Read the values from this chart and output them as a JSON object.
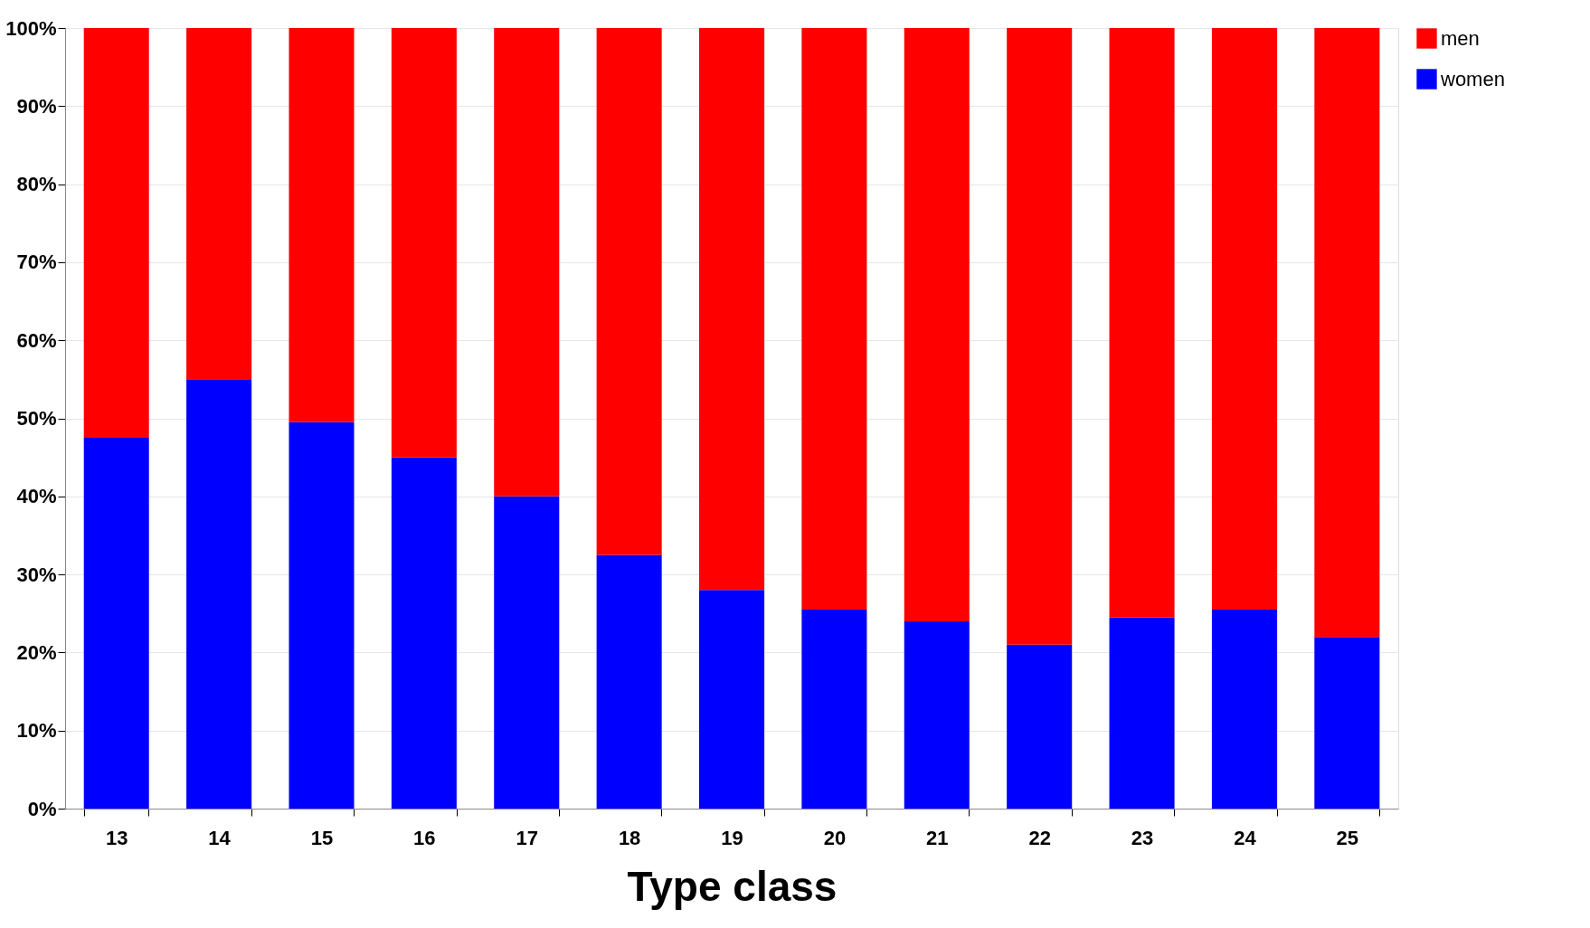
{
  "chart_data": {
    "type": "bar",
    "stacked": true,
    "xlabel": "Type class",
    "categories": [
      "13",
      "14",
      "15",
      "16",
      "17",
      "18",
      "19",
      "20",
      "21",
      "22",
      "23",
      "24",
      "25"
    ],
    "series": [
      {
        "name": "women",
        "color": "#0000ff",
        "values": [
          47.5,
          55,
          49.5,
          45,
          40,
          32.5,
          28,
          25.5,
          24,
          21,
          24.5,
          25.5,
          22
        ]
      },
      {
        "name": "men",
        "color": "#ff0000",
        "values": [
          52.5,
          45,
          50.5,
          55,
          60,
          67.5,
          72,
          74.5,
          76,
          79,
          75.5,
          74.5,
          78
        ]
      }
    ],
    "ylim": [
      0,
      100
    ],
    "yticks": [
      {
        "value": 0,
        "label": "0%"
      },
      {
        "value": 10,
        "label": "10%"
      },
      {
        "value": 20,
        "label": "20%"
      },
      {
        "value": 30,
        "label": "30%"
      },
      {
        "value": 40,
        "label": "40%"
      },
      {
        "value": 50,
        "label": "50%"
      },
      {
        "value": 60,
        "label": "60%"
      },
      {
        "value": 70,
        "label": "70%"
      },
      {
        "value": 80,
        "label": "80%"
      },
      {
        "value": 90,
        "label": "90%"
      },
      {
        "value": 100,
        "label": "100%"
      }
    ],
    "grid": true,
    "legend": "right"
  }
}
